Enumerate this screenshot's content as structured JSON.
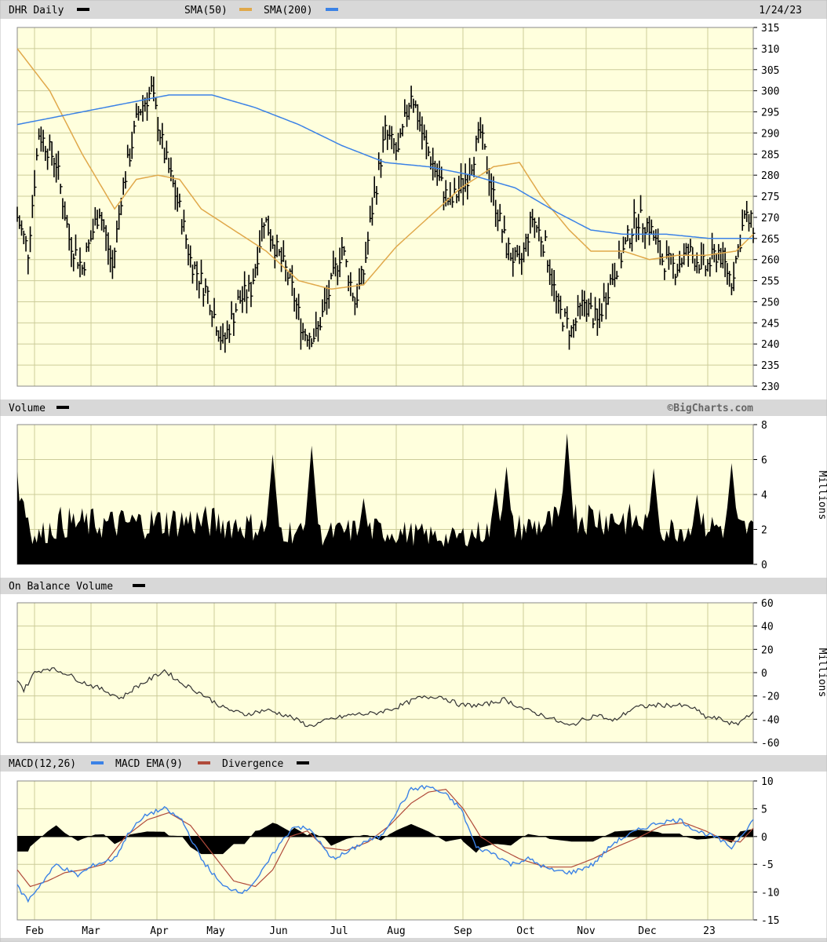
{
  "panels": {
    "price": {
      "ticker": "DHR",
      "period": "Daily",
      "sma50_label": "SMA(50)",
      "sma200_label": "SMA(200)",
      "date": "1/24/23"
    },
    "volume": {
      "title": "Volume",
      "watermark": "©BigCharts.com",
      "unit": "Millions"
    },
    "obv": {
      "title": "On Balance Volume",
      "unit": "Millions"
    },
    "macd": {
      "title": "MACD(12,26)",
      "ema_label": "MACD EMA(9)",
      "divergence_label": "Divergence"
    }
  },
  "x_axis": {
    "months": [
      "Feb",
      "Mar",
      "Apr",
      "May",
      "Jun",
      "Jul",
      "Aug",
      "Sep",
      "Oct",
      "Nov",
      "Dec",
      "23"
    ]
  },
  "colors": {
    "background": "#ffffdd",
    "grid": "#cccc99",
    "header": "#d8d8d8",
    "sma50": "#e0a84a",
    "sma200": "#3b82e6",
    "macd": "#3b82e6",
    "macd_ema": "#b04a3a",
    "bars": "#000000"
  },
  "chart_data": [
    {
      "type": "ohlc",
      "title": "DHR Daily",
      "ylim": [
        230,
        315
      ],
      "yticks": [
        230,
        235,
        240,
        245,
        250,
        255,
        260,
        265,
        270,
        275,
        280,
        285,
        290,
        295,
        300,
        305,
        310,
        315
      ],
      "price_waypoints": [
        [
          0,
          270
        ],
        [
          5,
          262
        ],
        [
          10,
          290
        ],
        [
          18,
          283
        ],
        [
          24,
          265
        ],
        [
          30,
          258
        ],
        [
          38,
          272
        ],
        [
          44,
          258
        ],
        [
          48,
          275
        ],
        [
          56,
          295
        ],
        [
          62,
          300
        ],
        [
          68,
          285
        ],
        [
          76,
          270
        ],
        [
          80,
          260
        ],
        [
          88,
          252
        ],
        [
          95,
          240
        ],
        [
          102,
          250
        ],
        [
          108,
          253
        ],
        [
          114,
          270
        ],
        [
          120,
          262
        ],
        [
          126,
          255
        ],
        [
          132,
          243
        ],
        [
          138,
          242
        ],
        [
          144,
          252
        ],
        [
          150,
          263
        ],
        [
          156,
          250
        ],
        [
          160,
          257
        ],
        [
          164,
          272
        ],
        [
          170,
          290
        ],
        [
          176,
          285
        ],
        [
          182,
          300
        ],
        [
          188,
          288
        ],
        [
          194,
          280
        ],
        [
          200,
          273
        ],
        [
          208,
          280
        ],
        [
          214,
          290
        ],
        [
          220,
          275
        ],
        [
          226,
          263
        ],
        [
          232,
          258
        ],
        [
          238,
          270
        ],
        [
          244,
          263
        ],
        [
          250,
          248
        ],
        [
          256,
          243
        ],
        [
          262,
          250
        ],
        [
          268,
          245
        ],
        [
          274,
          255
        ],
        [
          280,
          262
        ],
        [
          286,
          270
        ],
        [
          292,
          268
        ],
        [
          298,
          260
        ],
        [
          304,
          258
        ],
        [
          310,
          262
        ],
        [
          318,
          258
        ],
        [
          324,
          262
        ],
        [
          330,
          255
        ],
        [
          336,
          270
        ],
        [
          340,
          268
        ]
      ],
      "sma50_waypoints": [
        [
          0,
          310
        ],
        [
          15,
          300
        ],
        [
          30,
          285
        ],
        [
          45,
          272
        ],
        [
          55,
          279
        ],
        [
          65,
          280
        ],
        [
          75,
          279
        ],
        [
          85,
          272
        ],
        [
          100,
          267
        ],
        [
          115,
          262
        ],
        [
          130,
          255
        ],
        [
          145,
          253
        ],
        [
          160,
          254
        ],
        [
          175,
          263
        ],
        [
          190,
          270
        ],
        [
          205,
          277
        ],
        [
          220,
          282
        ],
        [
          232,
          283
        ],
        [
          242,
          275
        ],
        [
          255,
          267
        ],
        [
          265,
          262
        ],
        [
          280,
          262
        ],
        [
          292,
          260
        ],
        [
          305,
          261
        ],
        [
          318,
          261
        ],
        [
          332,
          262
        ],
        [
          340,
          266
        ]
      ],
      "sma200_waypoints": [
        [
          0,
          292
        ],
        [
          30,
          295
        ],
        [
          50,
          297
        ],
        [
          70,
          299
        ],
        [
          90,
          299
        ],
        [
          110,
          296
        ],
        [
          130,
          292
        ],
        [
          150,
          287
        ],
        [
          170,
          283
        ],
        [
          190,
          282
        ],
        [
          210,
          280
        ],
        [
          230,
          277
        ],
        [
          250,
          271
        ],
        [
          265,
          267
        ],
        [
          280,
          266
        ],
        [
          300,
          266
        ],
        [
          320,
          265
        ],
        [
          340,
          265
        ]
      ]
    },
    {
      "type": "area",
      "title": "Volume",
      "ylabel": "Millions",
      "ylim": [
        0,
        8
      ],
      "yticks": [
        0,
        2,
        4,
        6,
        8
      ],
      "baseline_waypoints": [
        [
          0,
          4.8
        ],
        [
          8,
          1.5
        ],
        [
          20,
          2.4
        ],
        [
          40,
          2.3
        ],
        [
          60,
          2.4
        ],
        [
          80,
          2.5
        ],
        [
          100,
          2.3
        ],
        [
          120,
          2.0
        ],
        [
          140,
          1.7
        ],
        [
          160,
          2.0
        ],
        [
          180,
          1.8
        ],
        [
          200,
          1.5
        ],
        [
          220,
          2.0
        ],
        [
          240,
          2.2
        ],
        [
          260,
          2.8
        ],
        [
          280,
          2.6
        ],
        [
          300,
          2.0
        ],
        [
          320,
          2.2
        ],
        [
          340,
          2.0
        ]
      ],
      "spikes": [
        [
          48,
          1.8
        ],
        [
          76,
          2.8
        ],
        [
          118,
          6.3
        ],
        [
          136,
          6.8
        ],
        [
          160,
          3.8
        ],
        [
          221,
          4.4
        ],
        [
          226,
          5.6
        ],
        [
          254,
          7.5
        ],
        [
          294,
          5.5
        ],
        [
          314,
          4.0
        ],
        [
          330,
          5.8
        ]
      ]
    },
    {
      "type": "line",
      "title": "On Balance Volume",
      "ylabel": "Millions",
      "ylim": [
        -60,
        60
      ],
      "yticks": [
        -60,
        -40,
        -20,
        0,
        20,
        40,
        60
      ],
      "obv_waypoints": [
        [
          0,
          -5
        ],
        [
          3,
          -15
        ],
        [
          8,
          0
        ],
        [
          14,
          4
        ],
        [
          22,
          0
        ],
        [
          30,
          -8
        ],
        [
          40,
          -15
        ],
        [
          48,
          -22
        ],
        [
          55,
          -12
        ],
        [
          62,
          -5
        ],
        [
          68,
          2
        ],
        [
          75,
          -8
        ],
        [
          85,
          -18
        ],
        [
          95,
          -30
        ],
        [
          105,
          -36
        ],
        [
          115,
          -32
        ],
        [
          125,
          -37
        ],
        [
          135,
          -46
        ],
        [
          145,
          -40
        ],
        [
          155,
          -36
        ],
        [
          165,
          -35
        ],
        [
          175,
          -30
        ],
        [
          185,
          -22
        ],
        [
          195,
          -20
        ],
        [
          205,
          -28
        ],
        [
          215,
          -28
        ],
        [
          225,
          -23
        ],
        [
          235,
          -32
        ],
        [
          245,
          -38
        ],
        [
          255,
          -46
        ],
        [
          262,
          -40
        ],
        [
          268,
          -36
        ],
        [
          275,
          -42
        ],
        [
          285,
          -30
        ],
        [
          295,
          -28
        ],
        [
          305,
          -28
        ],
        [
          312,
          -30
        ],
        [
          318,
          -38
        ],
        [
          325,
          -40
        ],
        [
          332,
          -45
        ],
        [
          340,
          -33
        ]
      ]
    },
    {
      "type": "line",
      "title": "MACD(12,26)",
      "ylim": [
        -15,
        10
      ],
      "yticks": [
        -15,
        -10,
        -5,
        0,
        5,
        10
      ],
      "macd_waypoints": [
        [
          0,
          -9
        ],
        [
          5,
          -11.5
        ],
        [
          12,
          -8
        ],
        [
          18,
          -5
        ],
        [
          28,
          -7
        ],
        [
          36,
          -5
        ],
        [
          45,
          -4
        ],
        [
          52,
          1
        ],
        [
          60,
          4
        ],
        [
          68,
          5
        ],
        [
          76,
          3
        ],
        [
          85,
          -4
        ],
        [
          95,
          -9
        ],
        [
          105,
          -10
        ],
        [
          112,
          -7
        ],
        [
          120,
          -2
        ],
        [
          128,
          2
        ],
        [
          136,
          1
        ],
        [
          145,
          -4
        ],
        [
          152,
          -3
        ],
        [
          160,
          -1
        ],
        [
          168,
          0
        ],
        [
          176,
          5
        ],
        [
          182,
          8.5
        ],
        [
          190,
          9
        ],
        [
          198,
          7.5
        ],
        [
          205,
          5
        ],
        [
          212,
          -2
        ],
        [
          220,
          -3
        ],
        [
          228,
          -5
        ],
        [
          236,
          -4
        ],
        [
          246,
          -6
        ],
        [
          256,
          -6.5
        ],
        [
          266,
          -5
        ],
        [
          276,
          -1
        ],
        [
          286,
          1
        ],
        [
          296,
          2.5
        ],
        [
          306,
          3
        ],
        [
          314,
          1
        ],
        [
          322,
          0
        ],
        [
          330,
          -2
        ],
        [
          340,
          3
        ]
      ],
      "ema_waypoints": [
        [
          0,
          -6
        ],
        [
          6,
          -9
        ],
        [
          14,
          -8
        ],
        [
          22,
          -6.5
        ],
        [
          30,
          -6
        ],
        [
          40,
          -5
        ],
        [
          50,
          0
        ],
        [
          60,
          3
        ],
        [
          70,
          4.3
        ],
        [
          80,
          2
        ],
        [
          90,
          -3
        ],
        [
          100,
          -8
        ],
        [
          110,
          -9
        ],
        [
          118,
          -6
        ],
        [
          126,
          0
        ],
        [
          134,
          1
        ],
        [
          142,
          -2
        ],
        [
          152,
          -2.5
        ],
        [
          162,
          -1
        ],
        [
          172,
          2
        ],
        [
          182,
          6
        ],
        [
          190,
          8
        ],
        [
          198,
          8.5
        ],
        [
          206,
          5
        ],
        [
          214,
          0
        ],
        [
          222,
          -2
        ],
        [
          232,
          -4
        ],
        [
          244,
          -5.5
        ],
        [
          256,
          -5.5
        ],
        [
          266,
          -4
        ],
        [
          276,
          -2
        ],
        [
          288,
          0
        ],
        [
          298,
          2
        ],
        [
          308,
          2.5
        ],
        [
          318,
          1
        ],
        [
          326,
          -0.5
        ],
        [
          334,
          -1
        ],
        [
          340,
          1.5
        ]
      ]
    }
  ]
}
